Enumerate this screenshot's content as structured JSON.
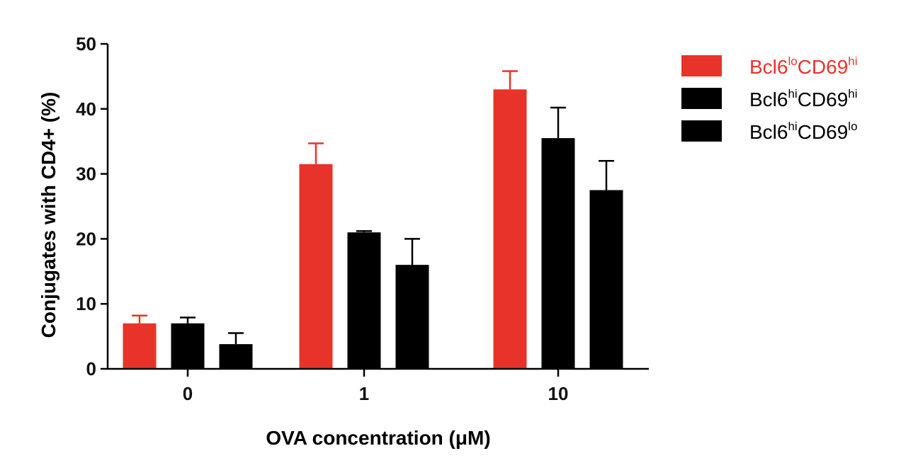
{
  "chart_data": {
    "type": "bar",
    "title": "",
    "xlabel": "OVA concentration (μM)",
    "ylabel": "Conjugates with CD4+ (%)",
    "ylim": [
      0,
      50
    ],
    "yticks": [
      0,
      10,
      20,
      30,
      40,
      50
    ],
    "categories": [
      "0",
      "1",
      "10"
    ],
    "series": [
      {
        "name": "Bcl6loCD69hi",
        "label_parts": [
          {
            "text": "Bcl6",
            "sup": false
          },
          {
            "text": "lo",
            "sup": true
          },
          {
            "text": "CD69",
            "sup": false
          },
          {
            "text": "hi",
            "sup": true
          }
        ],
        "color": "#e8332a",
        "values": [
          7.0,
          31.5,
          43.0
        ],
        "errors": [
          1.2,
          3.2,
          2.8
        ]
      },
      {
        "name": "Bcl6hiCD69hi",
        "label_parts": [
          {
            "text": "Bcl6",
            "sup": false
          },
          {
            "text": "hi",
            "sup": true
          },
          {
            "text": "CD69",
            "sup": false
          },
          {
            "text": "hi",
            "sup": true
          }
        ],
        "color": "#000000",
        "values": [
          7.0,
          21.0,
          35.5
        ],
        "errors": [
          0.9,
          0.2,
          4.7
        ]
      },
      {
        "name": "Bcl6hiCD69lo",
        "label_parts": [
          {
            "text": "Bcl6",
            "sup": false
          },
          {
            "text": "hi",
            "sup": true
          },
          {
            "text": "CD69",
            "sup": false
          },
          {
            "text": "lo",
            "sup": true
          }
        ],
        "color": "#000000",
        "values": [
          3.8,
          16.0,
          27.5
        ],
        "errors": [
          1.7,
          4.0,
          4.5
        ]
      }
    ],
    "legend_position": "top-right",
    "grid": false
  }
}
